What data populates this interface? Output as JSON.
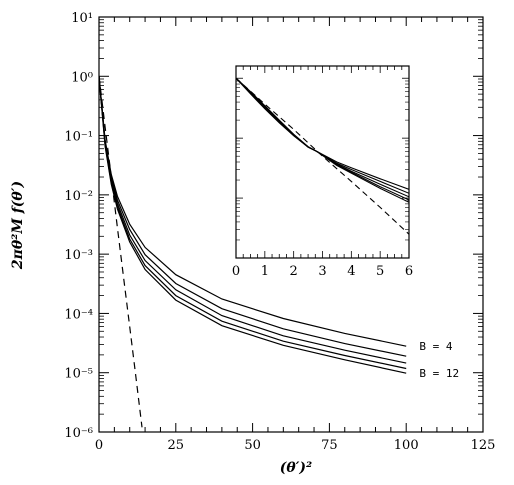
{
  "chart_data": [
    {
      "id": "main",
      "type": "line",
      "title": "",
      "xlabel": "(θ′)²",
      "ylabel": "2πθ²M f(θ′)",
      "yscale": "log",
      "xlim": [
        0,
        125
      ],
      "ylim": [
        1e-06,
        10
      ],
      "x_ticks": [
        0,
        25,
        50,
        75,
        100,
        125
      ],
      "y_ticks": [
        "10⁻⁶",
        "10⁻⁵",
        "10⁻⁴",
        "10⁻³",
        "10⁻²",
        "10⁻¹",
        "10⁰",
        "10¹"
      ],
      "series": [
        {
          "style": "solid",
          "x": [
            0,
            2,
            4,
            6,
            10,
            15,
            25,
            40,
            60,
            80,
            100
          ],
          "y": [
            1.0,
            0.085,
            0.022,
            0.0095,
            0.0032,
            0.0013,
            0.00045,
            0.000175,
            8.2e-05,
            4.6e-05,
            2.8e-05
          ]
        },
        {
          "style": "solid",
          "x": [
            0,
            2,
            4,
            6,
            10,
            15,
            25,
            40,
            60,
            80,
            100
          ],
          "y": [
            1.0,
            0.08,
            0.02,
            0.0082,
            0.0026,
            0.00098,
            0.00032,
            0.00012,
            5.5e-05,
            3.1e-05,
            1.9e-05
          ]
        },
        {
          "style": "solid",
          "x": [
            0,
            2,
            4,
            6,
            10,
            15,
            25,
            40,
            60,
            80,
            100
          ],
          "y": [
            1.0,
            0.075,
            0.018,
            0.0072,
            0.0021,
            0.00078,
            0.00025,
            9.2e-05,
            4.2e-05,
            2.4e-05,
            1.45e-05
          ]
        },
        {
          "style": "solid",
          "x": [
            0,
            2,
            4,
            6,
            10,
            15,
            25,
            40,
            60,
            80,
            100
          ],
          "y": [
            1.0,
            0.07,
            0.016,
            0.0064,
            0.0018,
            0.00064,
            0.0002,
            7.4e-05,
            3.4e-05,
            1.95e-05,
            1.18e-05
          ]
        },
        {
          "style": "solid",
          "x": [
            0,
            2,
            4,
            6,
            10,
            15,
            25,
            40,
            60,
            80,
            100
          ],
          "y": [
            1.0,
            0.066,
            0.015,
            0.0058,
            0.0016,
            0.00055,
            0.000168,
            6.2e-05,
            2.9e-05,
            1.65e-05,
            9.8e-06
          ]
        },
        {
          "style": "dashed",
          "x": [
            0,
            2,
            4,
            6,
            8,
            10,
            12,
            14
          ],
          "y": [
            1.0,
            0.14,
            0.02,
            0.0028,
            0.0004,
            6e-05,
            8.5e-06,
            1.2e-06
          ]
        }
      ],
      "annotations": [
        {
          "text": "B = 4",
          "x": 103,
          "y": 2.8e-05
        },
        {
          "text": "B = 12",
          "x": 103,
          "y": 9.8e-06
        }
      ]
    },
    {
      "id": "inset",
      "type": "line",
      "xlim": [
        0,
        6
      ],
      "ylim": [
        0.001,
        1.6
      ],
      "yscale": "log",
      "x_ticks": [
        0,
        1,
        2,
        3,
        4,
        5,
        6
      ],
      "series": [
        {
          "style": "solid",
          "x": [
            0,
            0.5,
            1,
            1.5,
            2,
            2.5,
            2.8,
            3.5,
            4,
            5,
            6
          ],
          "y": [
            1.0,
            0.55,
            0.31,
            0.18,
            0.11,
            0.072,
            0.06,
            0.04,
            0.032,
            0.021,
            0.014
          ]
        },
        {
          "style": "solid",
          "x": [
            0,
            0.5,
            1,
            1.5,
            2,
            2.5,
            2.8,
            3.5,
            4,
            5,
            6
          ],
          "y": [
            1.0,
            0.56,
            0.32,
            0.185,
            0.11,
            0.071,
            0.06,
            0.038,
            0.03,
            0.019,
            0.012
          ]
        },
        {
          "style": "solid",
          "x": [
            0,
            0.5,
            1,
            1.5,
            2,
            2.5,
            2.8,
            3.5,
            4,
            5,
            6
          ],
          "y": [
            1.0,
            0.58,
            0.33,
            0.19,
            0.112,
            0.071,
            0.06,
            0.037,
            0.028,
            0.017,
            0.0105
          ]
        },
        {
          "style": "solid",
          "x": [
            0,
            0.5,
            1,
            1.5,
            2,
            2.5,
            2.8,
            3.5,
            4,
            5,
            6
          ],
          "y": [
            1.0,
            0.59,
            0.34,
            0.195,
            0.114,
            0.071,
            0.06,
            0.036,
            0.027,
            0.0155,
            0.0093
          ]
        },
        {
          "style": "solid",
          "x": [
            0,
            0.5,
            1,
            1.5,
            2,
            2.5,
            2.8,
            3.5,
            4,
            5,
            6
          ],
          "y": [
            1.0,
            0.6,
            0.35,
            0.2,
            0.116,
            0.072,
            0.06,
            0.035,
            0.026,
            0.0145,
            0.0085
          ]
        },
        {
          "style": "dashed",
          "x": [
            0,
            1,
            2,
            3,
            4,
            5,
            6
          ],
          "y": [
            1.0,
            0.37,
            0.14,
            0.05,
            0.019,
            0.007,
            0.0025
          ]
        }
      ]
    }
  ]
}
